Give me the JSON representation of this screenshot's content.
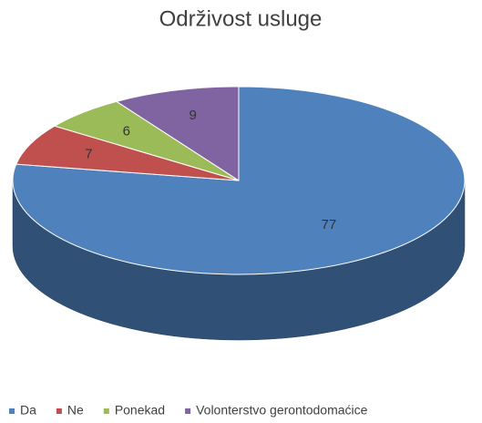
{
  "chart_data": {
    "type": "pie3d",
    "title": "Održivost usluge",
    "categories": [
      "Da",
      "Ne",
      "Ponekad",
      "Volonterstvo gerontodomaćice"
    ],
    "values": [
      77,
      7,
      6,
      9
    ],
    "colors": [
      "#4f81bd",
      "#c0504d",
      "#9bbb59",
      "#8064a2"
    ],
    "legend": "bottom"
  }
}
